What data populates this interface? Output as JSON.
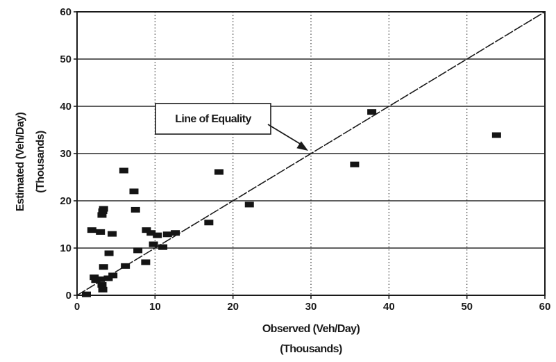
{
  "chart_data": {
    "type": "scatter",
    "title": "",
    "xlabel": "Observed (Veh/Day)",
    "xlabel_unit": "(Thousands)",
    "ylabel": "Estimated (Veh/Day)",
    "ylabel_unit": "(Thousands)",
    "xlim": [
      0,
      60
    ],
    "ylim": [
      0,
      60
    ],
    "xticks": [
      "0",
      "10",
      "20",
      "30",
      "40",
      "50",
      "60"
    ],
    "yticks": [
      "0",
      "10",
      "20",
      "30",
      "40",
      "50",
      "60"
    ],
    "grid": {
      "horizontal": "solid",
      "vertical": "dotted"
    },
    "reference_line": {
      "label": "Line of Equality",
      "points": [
        [
          0,
          0
        ],
        [
          60,
          60
        ]
      ]
    },
    "annotation": {
      "text": "Line of Equality",
      "arrow_target": [
        30,
        30
      ]
    },
    "points": [
      {
        "x": 1.2,
        "y": 0.2
      },
      {
        "x": 2.2,
        "y": 3.8
      },
      {
        "x": 2.4,
        "y": 3.2
      },
      {
        "x": 1.9,
        "y": 13.8
      },
      {
        "x": 3.0,
        "y": 13.4
      },
      {
        "x": 3.2,
        "y": 17.0
      },
      {
        "x": 3.3,
        "y": 17.8
      },
      {
        "x": 3.4,
        "y": 18.3
      },
      {
        "x": 3.0,
        "y": 3.4
      },
      {
        "x": 3.2,
        "y": 2.2
      },
      {
        "x": 3.3,
        "y": 1.2
      },
      {
        "x": 3.4,
        "y": 6.0
      },
      {
        "x": 4.1,
        "y": 8.9
      },
      {
        "x": 4.5,
        "y": 13.0
      },
      {
        "x": 4.0,
        "y": 3.6
      },
      {
        "x": 4.6,
        "y": 4.2
      },
      {
        "x": 6.0,
        "y": 26.4
      },
      {
        "x": 6.2,
        "y": 6.2
      },
      {
        "x": 7.3,
        "y": 22.0
      },
      {
        "x": 7.5,
        "y": 18.1
      },
      {
        "x": 7.8,
        "y": 9.5
      },
      {
        "x": 8.9,
        "y": 13.8
      },
      {
        "x": 8.8,
        "y": 7.0
      },
      {
        "x": 9.5,
        "y": 13.2
      },
      {
        "x": 9.8,
        "y": 10.8
      },
      {
        "x": 10.3,
        "y": 12.7
      },
      {
        "x": 11.0,
        "y": 10.2
      },
      {
        "x": 11.6,
        "y": 12.9
      },
      {
        "x": 12.6,
        "y": 13.2
      },
      {
        "x": 16.9,
        "y": 15.4
      },
      {
        "x": 18.2,
        "y": 26.1
      },
      {
        "x": 22.1,
        "y": 19.2
      },
      {
        "x": 35.6,
        "y": 27.7
      },
      {
        "x": 37.8,
        "y": 38.8
      },
      {
        "x": 53.8,
        "y": 33.9
      }
    ]
  }
}
